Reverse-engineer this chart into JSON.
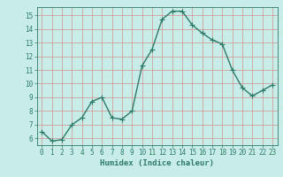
{
  "x": [
    0,
    1,
    2,
    3,
    4,
    5,
    6,
    7,
    8,
    9,
    10,
    11,
    12,
    13,
    14,
    15,
    16,
    17,
    18,
    19,
    20,
    21,
    22,
    23
  ],
  "y": [
    6.5,
    5.8,
    5.9,
    7.0,
    7.5,
    8.7,
    9.0,
    7.5,
    7.4,
    8.0,
    11.3,
    12.5,
    14.7,
    15.3,
    15.3,
    14.3,
    13.7,
    13.2,
    12.9,
    11.0,
    9.7,
    9.1,
    9.5,
    9.9
  ],
  "line_color": "#2d7a68",
  "marker": "+",
  "marker_size": 4,
  "line_width": 1.0,
  "xlabel": "Humidex (Indice chaleur)",
  "xlim": [
    -0.5,
    23.5
  ],
  "ylim": [
    5.5,
    15.6
  ],
  "yticks": [
    6,
    7,
    8,
    9,
    10,
    11,
    12,
    13,
    14,
    15
  ],
  "xticks": [
    0,
    1,
    2,
    3,
    4,
    5,
    6,
    7,
    8,
    9,
    10,
    11,
    12,
    13,
    14,
    15,
    16,
    17,
    18,
    19,
    20,
    21,
    22,
    23
  ],
  "bg_color": "#c8ede8",
  "grid_color": "#d09090",
  "tick_color": "#2d7a68",
  "label_color": "#2d7a68",
  "font_size_ticks": 5.5,
  "font_size_xlabel": 6.5
}
